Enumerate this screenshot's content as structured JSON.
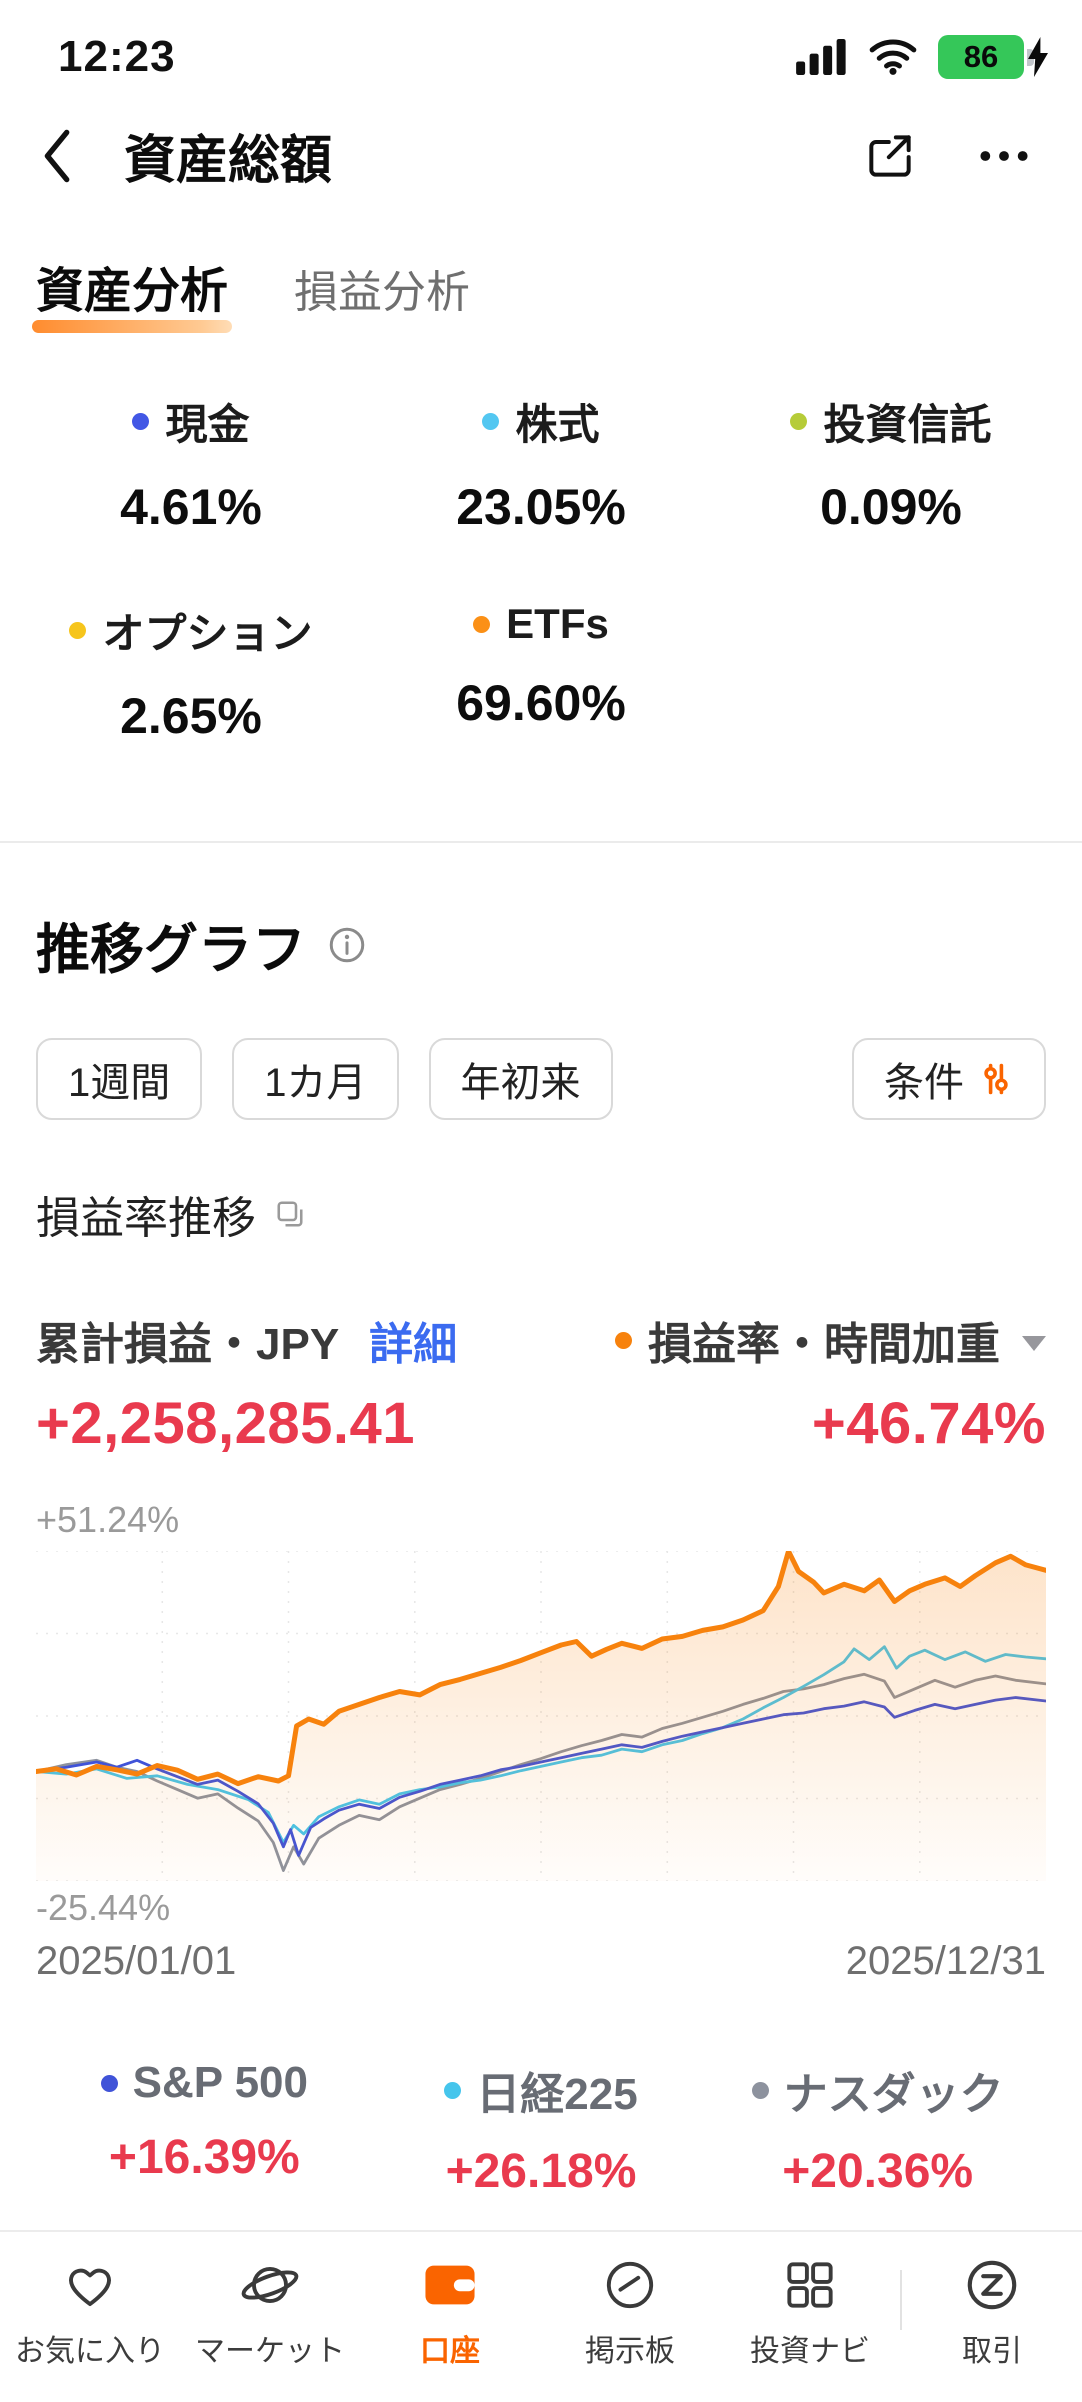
{
  "status_bar": {
    "time": "12:23",
    "battery_percent": "86"
  },
  "header": {
    "title": "資産総額"
  },
  "tabs": [
    {
      "label": "資産分析",
      "active": true
    },
    {
      "label": "損益分析",
      "active": false
    }
  ],
  "allocation": {
    "items": [
      {
        "label": "現金",
        "value": "4.61%",
        "color": "#4257e5"
      },
      {
        "label": "株式",
        "value": "23.05%",
        "color": "#53c7f1"
      },
      {
        "label": "投資信託",
        "value": "0.09%",
        "color": "#b6cc38"
      },
      {
        "label": "オプション",
        "value": "2.65%",
        "color": "#f6c51c"
      },
      {
        "label": "ETFs",
        "value": "69.60%",
        "color": "#fb9016"
      }
    ]
  },
  "trend_section": {
    "title": "推移グラフ",
    "period_buttons": [
      "1週間",
      "1カ月",
      "年初来"
    ],
    "filter_button": "条件",
    "subtitle": "損益率推移",
    "left_metric": {
      "label": "累計損益・JPY",
      "link": "詳細",
      "value": "+2,258,285.41"
    },
    "right_metric": {
      "label": "損益率・時間加重",
      "value": "+46.74%"
    }
  },
  "chart_data": {
    "type": "line",
    "title": "損益率推移",
    "ylim": [
      -25.44,
      51.24
    ],
    "y_top_label": "+51.24%",
    "y_bottom_label": "-25.44%",
    "x_start_label": "2025/01/01",
    "x_end_label": "2025/12/31",
    "grid": "dotted",
    "series": [
      {
        "name": "損益率・時間加重",
        "end_value": "+46.74%",
        "color": "#f7820d",
        "stroke_width": 5,
        "area": true,
        "points": [
          [
            0,
            0
          ],
          [
            0.02,
            0.6
          ],
          [
            0.04,
            -0.8
          ],
          [
            0.06,
            1.2
          ],
          [
            0.08,
            0.4
          ],
          [
            0.1,
            -0.6
          ],
          [
            0.12,
            1.4
          ],
          [
            0.14,
            0.3
          ],
          [
            0.16,
            -1.8
          ],
          [
            0.18,
            -0.6
          ],
          [
            0.2,
            -2.8
          ],
          [
            0.22,
            -1.2
          ],
          [
            0.24,
            -2.2
          ],
          [
            0.25,
            -1.0
          ],
          [
            0.258,
            10.6
          ],
          [
            0.27,
            12.2
          ],
          [
            0.285,
            11.0
          ],
          [
            0.3,
            14.0
          ],
          [
            0.32,
            15.6
          ],
          [
            0.34,
            17.2
          ],
          [
            0.36,
            18.6
          ],
          [
            0.38,
            17.8
          ],
          [
            0.4,
            20.2
          ],
          [
            0.42,
            21.4
          ],
          [
            0.44,
            22.8
          ],
          [
            0.46,
            24.2
          ],
          [
            0.48,
            25.8
          ],
          [
            0.5,
            27.6
          ],
          [
            0.52,
            29.4
          ],
          [
            0.535,
            30.2
          ],
          [
            0.55,
            26.8
          ],
          [
            0.565,
            28.4
          ],
          [
            0.58,
            29.8
          ],
          [
            0.6,
            28.6
          ],
          [
            0.62,
            30.8
          ],
          [
            0.64,
            31.4
          ],
          [
            0.66,
            32.8
          ],
          [
            0.68,
            33.6
          ],
          [
            0.7,
            35.2
          ],
          [
            0.72,
            37.4
          ],
          [
            0.735,
            43.0
          ],
          [
            0.745,
            51.2
          ],
          [
            0.755,
            46.5
          ],
          [
            0.77,
            44.0
          ],
          [
            0.78,
            41.5
          ],
          [
            0.8,
            43.5
          ],
          [
            0.82,
            42.0
          ],
          [
            0.835,
            44.5
          ],
          [
            0.85,
            39.5
          ],
          [
            0.865,
            42.0
          ],
          [
            0.88,
            43.5
          ],
          [
            0.9,
            45.0
          ],
          [
            0.915,
            43.0
          ],
          [
            0.93,
            45.5
          ],
          [
            0.95,
            48.5
          ],
          [
            0.965,
            50.0
          ],
          [
            0.98,
            48.0
          ],
          [
            1,
            46.74
          ]
        ]
      },
      {
        "name": "S&P 500",
        "end_value": "+16.39%",
        "color": "#4053d8",
        "stroke_width": 2.8,
        "points": [
          [
            0,
            0
          ],
          [
            0.03,
            1.0
          ],
          [
            0.06,
            2.2
          ],
          [
            0.08,
            1.0
          ],
          [
            0.1,
            2.6
          ],
          [
            0.12,
            0.6
          ],
          [
            0.14,
            -1.2
          ],
          [
            0.16,
            -3.0
          ],
          [
            0.18,
            -2.0
          ],
          [
            0.2,
            -4.6
          ],
          [
            0.22,
            -7.5
          ],
          [
            0.235,
            -12.0
          ],
          [
            0.245,
            -17.5
          ],
          [
            0.252,
            -13.5
          ],
          [
            0.26,
            -19.5
          ],
          [
            0.272,
            -13.0
          ],
          [
            0.285,
            -11.0
          ],
          [
            0.3,
            -9.0
          ],
          [
            0.32,
            -7.6
          ],
          [
            0.34,
            -8.6
          ],
          [
            0.36,
            -6.0
          ],
          [
            0.38,
            -4.6
          ],
          [
            0.4,
            -3.0
          ],
          [
            0.42,
            -2.0
          ],
          [
            0.44,
            -1.0
          ],
          [
            0.46,
            0.4
          ],
          [
            0.48,
            1.2
          ],
          [
            0.5,
            2.2
          ],
          [
            0.52,
            3.2
          ],
          [
            0.54,
            4.2
          ],
          [
            0.56,
            5.2
          ],
          [
            0.58,
            6.2
          ],
          [
            0.6,
            5.6
          ],
          [
            0.62,
            7.0
          ],
          [
            0.64,
            8.2
          ],
          [
            0.66,
            9.2
          ],
          [
            0.68,
            10.2
          ],
          [
            0.7,
            11.2
          ],
          [
            0.72,
            12.2
          ],
          [
            0.74,
            13.2
          ],
          [
            0.76,
            13.6
          ],
          [
            0.78,
            14.6
          ],
          [
            0.8,
            15.2
          ],
          [
            0.82,
            16.2
          ],
          [
            0.84,
            15.0
          ],
          [
            0.85,
            12.6
          ],
          [
            0.87,
            14.2
          ],
          [
            0.89,
            15.6
          ],
          [
            0.91,
            14.6
          ],
          [
            0.93,
            15.6
          ],
          [
            0.95,
            16.6
          ],
          [
            0.97,
            17.2
          ],
          [
            1,
            16.39
          ]
        ]
      },
      {
        "name": "日経225",
        "end_value": "+26.18%",
        "color": "#45c5ec",
        "stroke_width": 2.8,
        "points": [
          [
            0,
            0
          ],
          [
            0.03,
            -0.6
          ],
          [
            0.06,
            0.6
          ],
          [
            0.09,
            -1.6
          ],
          [
            0.12,
            -1.0
          ],
          [
            0.15,
            -3.0
          ],
          [
            0.18,
            -4.2
          ],
          [
            0.21,
            -6.5
          ],
          [
            0.23,
            -9.5
          ],
          [
            0.245,
            -16.5
          ],
          [
            0.255,
            -12.5
          ],
          [
            0.265,
            -14.5
          ],
          [
            0.28,
            -10.5
          ],
          [
            0.3,
            -8.2
          ],
          [
            0.32,
            -6.6
          ],
          [
            0.34,
            -7.6
          ],
          [
            0.36,
            -5.2
          ],
          [
            0.38,
            -4.2
          ],
          [
            0.4,
            -3.6
          ],
          [
            0.42,
            -2.6
          ],
          [
            0.44,
            -2.0
          ],
          [
            0.46,
            -1.0
          ],
          [
            0.48,
            0.2
          ],
          [
            0.5,
            1.2
          ],
          [
            0.52,
            2.2
          ],
          [
            0.54,
            3.2
          ],
          [
            0.56,
            3.8
          ],
          [
            0.58,
            5.2
          ],
          [
            0.6,
            4.6
          ],
          [
            0.62,
            6.2
          ],
          [
            0.64,
            7.2
          ],
          [
            0.66,
            8.8
          ],
          [
            0.68,
            10.2
          ],
          [
            0.7,
            12.2
          ],
          [
            0.72,
            14.8
          ],
          [
            0.74,
            17.2
          ],
          [
            0.76,
            19.8
          ],
          [
            0.78,
            22.5
          ],
          [
            0.8,
            25.5
          ],
          [
            0.81,
            28.5
          ],
          [
            0.825,
            26.0
          ],
          [
            0.84,
            29.0
          ],
          [
            0.852,
            24.0
          ],
          [
            0.865,
            26.8
          ],
          [
            0.88,
            28.2
          ],
          [
            0.9,
            26.0
          ],
          [
            0.92,
            27.8
          ],
          [
            0.94,
            25.6
          ],
          [
            0.96,
            27.2
          ],
          [
            0.98,
            26.6
          ],
          [
            1,
            26.18
          ]
        ]
      },
      {
        "name": "ナスダック",
        "end_value": "+20.36%",
        "color": "#8d929e",
        "stroke_width": 2.8,
        "points": [
          [
            0,
            0
          ],
          [
            0.03,
            1.6
          ],
          [
            0.06,
            2.6
          ],
          [
            0.08,
            1.0
          ],
          [
            0.1,
            0.0
          ],
          [
            0.12,
            -2.2
          ],
          [
            0.14,
            -4.2
          ],
          [
            0.16,
            -6.2
          ],
          [
            0.18,
            -5.2
          ],
          [
            0.2,
            -8.5
          ],
          [
            0.22,
            -11.5
          ],
          [
            0.235,
            -16.5
          ],
          [
            0.245,
            -23.0
          ],
          [
            0.255,
            -17.5
          ],
          [
            0.265,
            -21.5
          ],
          [
            0.28,
            -15.5
          ],
          [
            0.3,
            -12.5
          ],
          [
            0.32,
            -10.2
          ],
          [
            0.34,
            -11.2
          ],
          [
            0.36,
            -8.2
          ],
          [
            0.38,
            -6.2
          ],
          [
            0.4,
            -4.2
          ],
          [
            0.42,
            -3.0
          ],
          [
            0.44,
            -1.6
          ],
          [
            0.46,
            0.0
          ],
          [
            0.48,
            1.6
          ],
          [
            0.5,
            3.0
          ],
          [
            0.52,
            4.6
          ],
          [
            0.54,
            6.0
          ],
          [
            0.56,
            7.2
          ],
          [
            0.58,
            8.6
          ],
          [
            0.6,
            8.0
          ],
          [
            0.62,
            10.0
          ],
          [
            0.64,
            11.2
          ],
          [
            0.66,
            12.6
          ],
          [
            0.68,
            14.0
          ],
          [
            0.7,
            15.6
          ],
          [
            0.72,
            17.0
          ],
          [
            0.74,
            18.6
          ],
          [
            0.76,
            19.2
          ],
          [
            0.78,
            20.2
          ],
          [
            0.8,
            21.6
          ],
          [
            0.82,
            22.6
          ],
          [
            0.84,
            21.0
          ],
          [
            0.85,
            17.2
          ],
          [
            0.87,
            19.2
          ],
          [
            0.89,
            21.2
          ],
          [
            0.91,
            19.6
          ],
          [
            0.93,
            21.2
          ],
          [
            0.95,
            22.2
          ],
          [
            0.97,
            21.2
          ],
          [
            1,
            20.36
          ]
        ]
      }
    ]
  },
  "legend": [
    {
      "label": "S&P 500",
      "value": "+16.39%",
      "color": "#4053d8"
    },
    {
      "label": "日経225",
      "value": "+26.18%",
      "color": "#45c5ec"
    },
    {
      "label": "ナスダック",
      "value": "+20.36%",
      "color": "#8d929e"
    }
  ],
  "bottom_nav": {
    "items": [
      {
        "label": "お気に入り",
        "icon": "heart-icon",
        "active": false
      },
      {
        "label": "マーケット",
        "icon": "planet-icon",
        "active": false
      },
      {
        "label": "口座",
        "icon": "wallet-icon",
        "active": true
      },
      {
        "label": "掲示板",
        "icon": "gauge-icon",
        "active": false
      },
      {
        "label": "投資ナビ",
        "icon": "grid-icon",
        "active": false
      },
      {
        "label": "取引",
        "icon": "trade-icon",
        "active": false
      }
    ]
  },
  "colors": {
    "accent_orange": "#fa6400",
    "chart_orange": "#f7820d",
    "gain_red": "#e93a4e",
    "link_blue": "#3b6bf0"
  }
}
